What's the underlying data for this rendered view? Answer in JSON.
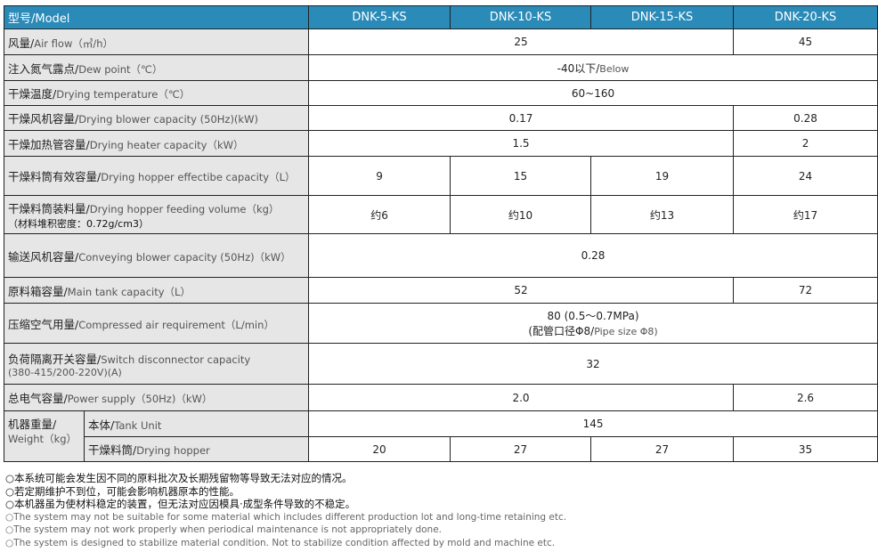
{
  "header": {
    "label": "型号/Model",
    "models": [
      "DNK-5-KS",
      "DNK-10-KS",
      "DNK-15-KS",
      "DNK-20-KS"
    ]
  },
  "rows": {
    "airflow": {
      "cn": "风量/",
      "en": "Air flow（㎥/h）",
      "v1": "25",
      "v2": "45"
    },
    "dew": {
      "cn": "注入氮气露点/",
      "en": "Dew point（℃）",
      "v_cn": "-40以下/",
      "v_en": "Below"
    },
    "temp": {
      "cn": "干燥温度/",
      "en": "Drying temperature（℃）",
      "v": "60~160"
    },
    "blower": {
      "cn": "干燥风机容量/",
      "en": "Drying blower capacity (50Hz)(kW)",
      "v1": "0.17",
      "v2": "0.28"
    },
    "heater": {
      "cn": "干燥加热管容量/",
      "en": "Drying heater capacity（kW）",
      "v1": "1.5",
      "v2": "2"
    },
    "hopper_cap": {
      "cn": "干燥料筒有效容量/",
      "en": "Drying hopper effectibe capacity（L）",
      "v": [
        "9",
        "15",
        "19",
        "24"
      ]
    },
    "feeding": {
      "cn": "干燥料筒装料量/",
      "en": "Drying hopper feeding volume（kg）",
      "note": "（材料堆积密度：0.72g/cm3）",
      "v": [
        "约6",
        "约10",
        "约13",
        "约17"
      ]
    },
    "conveying": {
      "cn": "输送风机容量/",
      "en": "Conveying blower capacity (50Hz)（kW）",
      "v": "0.28"
    },
    "tank": {
      "cn": "原料箱容量/",
      "en": "Main tank capacity（L）",
      "v1": "52",
      "v2": "72"
    },
    "air": {
      "cn": "压缩空气用量/",
      "en": "Compressed air requirement（L/min）",
      "line1": "80 (0.5～0.7MPa)",
      "line2_cn": "(配管口径Φ8/",
      "line2_en": "Pipe size Φ8)"
    },
    "switch": {
      "cn": "负荷隔离开关容量/",
      "en": "Switch disconnector capacity",
      "sub": "(380-415/200-220V)(A)",
      "v": "32"
    },
    "power": {
      "cn": "总电气容量/",
      "en": "Power supply（50Hz)（kW）",
      "v1": "2.0",
      "v2": "2.6"
    },
    "weight": {
      "cn": "机器重量/",
      "en": "Weight（kg）",
      "tank_cn": "本体/",
      "tank_en": "Tank Unit",
      "tank_v": "145",
      "hopper_cn": "干燥料筒/",
      "hopper_en": "Drying hopper",
      "hopper_v": [
        "20",
        "27",
        "27",
        "35"
      ]
    }
  },
  "notes": {
    "cn": [
      "○本系统可能会发生因不同的原料批次及长期残留物等导致无法对应的情况。",
      "○若定期维护不到位，可能会影响机器原本的性能。",
      "○本机器虽为使材料稳定的装置，但无法对应因模具·成型条件导致的不稳定。"
    ],
    "en": [
      "○The system may not be suitable for some material which includes different production lot and long-time retaining etc.",
      "○The system may not work properly when periodical maintenance is not appropriately done.",
      "○The system is designed to stabilize material condition. Not to stabilize condition affected by mold and machine etc."
    ]
  }
}
